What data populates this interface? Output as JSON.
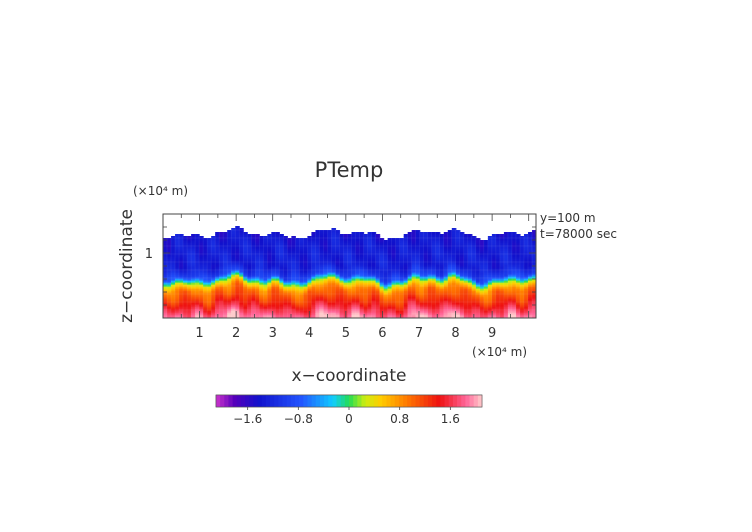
{
  "chart_data": {
    "type": "heatmap",
    "title": "PTemp",
    "xlabel": "x−coordinate",
    "ylabel": "z−coordinate",
    "x_unit": "(×10⁴ m)",
    "z_unit": "(×10⁴ m)",
    "annotations": [
      "y=100  m",
      "t=78000 sec"
    ],
    "xlim": [
      0,
      10.2
    ],
    "zlim": [
      0,
      1.6
    ],
    "x_ticks": [
      "1",
      "2",
      "3",
      "4",
      "5",
      "6",
      "7",
      "8",
      "9"
    ],
    "x_tick_values": [
      1,
      2,
      3,
      4,
      5,
      6,
      7,
      8,
      9
    ],
    "z_ticks": [
      "1"
    ],
    "z_tick_values": [
      1
    ],
    "colorbar": {
      "range": [
        -2.1,
        2.1
      ],
      "tick_labels": [
        "−1.6",
        "−0.8",
        "0",
        "0.8",
        "1.6"
      ],
      "tick_values": [
        -1.6,
        -0.8,
        0,
        0.8,
        1.6
      ]
    },
    "profile_by_height": [
      {
        "z": 0.0,
        "value": 2.0
      },
      {
        "z": 0.15,
        "value": 1.6
      },
      {
        "z": 0.3,
        "value": 1.2
      },
      {
        "z": 0.45,
        "value": 0.9
      },
      {
        "z": 0.55,
        "value": 0.3
      },
      {
        "z": 0.65,
        "value": -0.9
      },
      {
        "z": 0.8,
        "value": -1.3
      },
      {
        "z": 1.0,
        "value": -1.3
      },
      {
        "z": 1.2,
        "value": -1.35
      },
      {
        "z": 1.3,
        "value": -1.4
      },
      {
        "z": 1.31,
        "value": null
      },
      {
        "z": 1.6,
        "value": null
      }
    ]
  }
}
